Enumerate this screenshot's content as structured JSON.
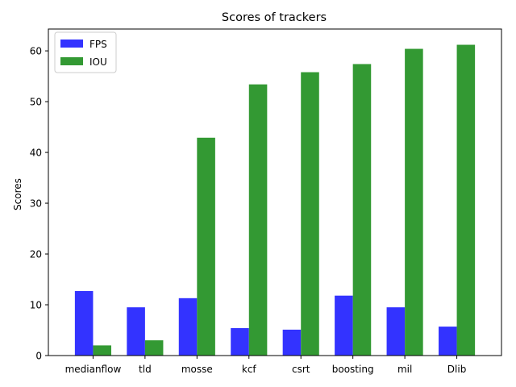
{
  "chart_data": {
    "type": "bar",
    "title": "Scores of trackers",
    "xlabel": "",
    "ylabel": "Scores",
    "categories": [
      "medianflow",
      "tld",
      "mosse",
      "kcf",
      "csrt",
      "boosting",
      "mil",
      "Dlib"
    ],
    "series": [
      {
        "name": "FPS",
        "color": "#3333ff",
        "values": [
          12.7,
          9.5,
          11.3,
          5.4,
          5.1,
          11.8,
          9.5,
          5.7
        ]
      },
      {
        "name": "IOU",
        "color": "#339933",
        "values": [
          2.0,
          3.0,
          42.9,
          53.4,
          55.8,
          57.4,
          60.4,
          61.2
        ]
      }
    ],
    "ylim": [
      0,
      64.3
    ],
    "yticks": [
      0,
      10,
      20,
      30,
      40,
      50,
      60
    ],
    "grid": false,
    "legend_position": "top-left"
  }
}
